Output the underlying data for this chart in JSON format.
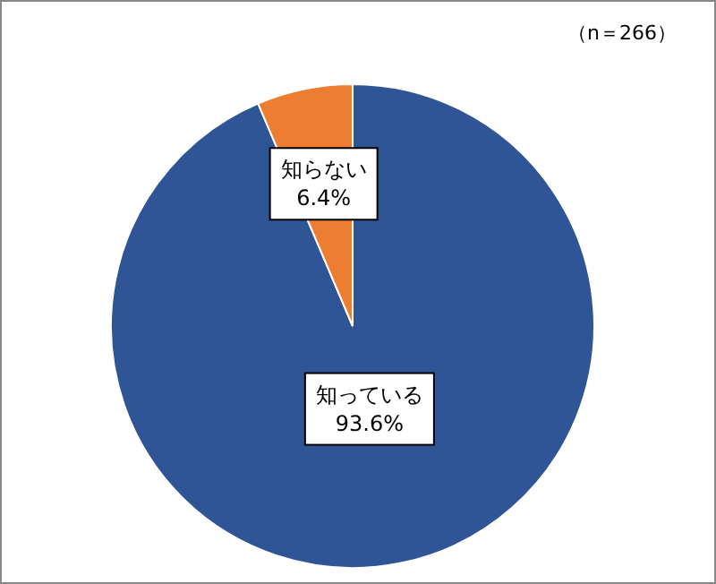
{
  "chart_data": {
    "type": "pie",
    "categories": [
      "知っている",
      "知らない"
    ],
    "values": [
      93.6,
      6.4
    ],
    "colors": [
      "#2f5597",
      "#ed7d31"
    ],
    "value_labels": [
      "93.6%",
      "6.4%"
    ],
    "annotations": [
      "（n＝266）"
    ]
  }
}
